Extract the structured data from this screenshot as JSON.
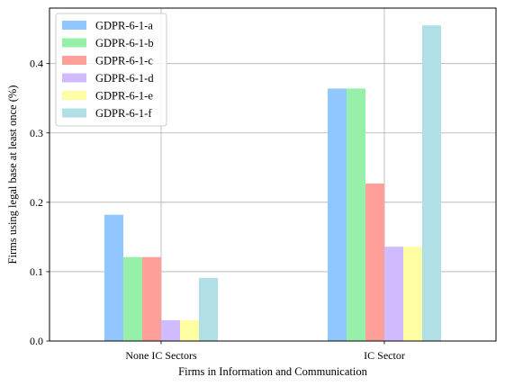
{
  "chart_data": {
    "type": "bar",
    "title": "",
    "xlabel": "Firms in Information and Communication",
    "ylabel": "Firms using legal base at least once (%)",
    "categories": [
      "None IC Sectors",
      "IC Sector"
    ],
    "series": [
      {
        "name": "GDPR-6-1-a",
        "color": "#92c6ff",
        "values": [
          0.182,
          0.364
        ]
      },
      {
        "name": "GDPR-6-1-b",
        "color": "#97f0aa",
        "values": [
          0.121,
          0.364
        ]
      },
      {
        "name": "GDPR-6-1-c",
        "color": "#ff9f9a",
        "values": [
          0.121,
          0.227
        ]
      },
      {
        "name": "GDPR-6-1-d",
        "color": "#d0bbff",
        "values": [
          0.03,
          0.136
        ]
      },
      {
        "name": "GDPR-6-1-e",
        "color": "#fffea3",
        "values": [
          0.03,
          0.136
        ]
      },
      {
        "name": "GDPR-6-1-f",
        "color": "#b0e0e6",
        "values": [
          0.091,
          0.455
        ]
      }
    ],
    "ylim": [
      0,
      0.48
    ],
    "yticks": [
      "0.0",
      "0.1",
      "0.2",
      "0.3",
      "0.4"
    ],
    "grid": true,
    "legend_position": "top-left"
  }
}
